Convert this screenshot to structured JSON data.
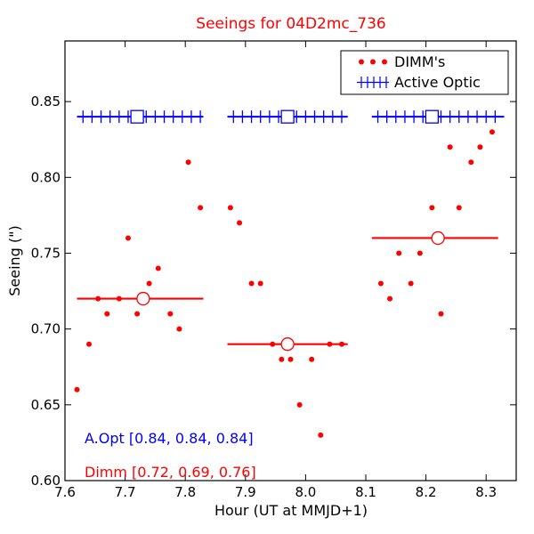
{
  "chart_data": {
    "type": "scatter",
    "title": "Seeings for 04D2mc_736",
    "xlabel": "Hour (UT at MMJD+1)",
    "ylabel": "Seeing (\")",
    "xlim": [
      7.6,
      8.35
    ],
    "ylim": [
      0.6,
      0.89
    ],
    "grid": false,
    "legend_position": "top-right",
    "xticks": [
      "7.6",
      "7.7",
      "7.8",
      "7.9",
      "8.0",
      "8.1",
      "8.2",
      "8.3"
    ],
    "yticks": [
      "0.60",
      "0.65",
      "0.70",
      "0.75",
      "0.80",
      "0.85"
    ],
    "legend": [
      "DIMM's",
      "Active Optic"
    ],
    "annotations": [
      "A.Opt [0.84, 0.84, 0.84]",
      "Dimm [0.72, 0.69, 0.76]"
    ],
    "colors": {
      "dimm": "#ff0000",
      "active_optic": "#0000ff",
      "title": "#ff0000"
    },
    "series": [
      {
        "name": "DIMM's",
        "points": [
          [
            7.62,
            0.66
          ],
          [
            7.64,
            0.69
          ],
          [
            7.655,
            0.72
          ],
          [
            7.67,
            0.71
          ],
          [
            7.69,
            0.72
          ],
          [
            7.705,
            0.76
          ],
          [
            7.72,
            0.71
          ],
          [
            7.74,
            0.73
          ],
          [
            7.755,
            0.74
          ],
          [
            7.775,
            0.71
          ],
          [
            7.79,
            0.7
          ],
          [
            7.805,
            0.81
          ],
          [
            7.825,
            0.78
          ],
          [
            7.875,
            0.78
          ],
          [
            7.89,
            0.77
          ],
          [
            7.91,
            0.73
          ],
          [
            7.925,
            0.73
          ],
          [
            7.945,
            0.69
          ],
          [
            7.96,
            0.68
          ],
          [
            7.975,
            0.68
          ],
          [
            7.99,
            0.65
          ],
          [
            8.01,
            0.68
          ],
          [
            8.025,
            0.63
          ],
          [
            8.04,
            0.69
          ],
          [
            8.06,
            0.69
          ],
          [
            8.125,
            0.73
          ],
          [
            8.14,
            0.72
          ],
          [
            8.155,
            0.75
          ],
          [
            8.175,
            0.73
          ],
          [
            8.19,
            0.75
          ],
          [
            8.21,
            0.78
          ],
          [
            8.225,
            0.71
          ],
          [
            8.24,
            0.82
          ],
          [
            8.255,
            0.78
          ],
          [
            8.275,
            0.81
          ],
          [
            8.29,
            0.82
          ],
          [
            8.31,
            0.83
          ]
        ]
      },
      {
        "name": "Active Optic",
        "segments": [
          {
            "x_start": 7.62,
            "x_end": 7.83,
            "y": 0.84,
            "marker_x": 7.72,
            "ticks": [
              7.63,
              7.645,
              7.66,
              7.675,
              7.69,
              7.705,
              7.735,
              7.75,
              7.765,
              7.78,
              7.795,
              7.81,
              7.825
            ]
          },
          {
            "x_start": 7.87,
            "x_end": 8.07,
            "y": 0.84,
            "marker_x": 7.97,
            "ticks": [
              7.88,
              7.895,
              7.91,
              7.925,
              7.94,
              7.955,
              7.985,
              8.0,
              8.015,
              8.03,
              8.045,
              8.06
            ]
          },
          {
            "x_start": 8.11,
            "x_end": 8.33,
            "y": 0.84,
            "marker_x": 8.21,
            "ticks": [
              8.12,
              8.135,
              8.15,
              8.165,
              8.18,
              8.195,
              8.225,
              8.24,
              8.255,
              8.27,
              8.285,
              8.3,
              8.315
            ]
          }
        ]
      },
      {
        "name": "DIMM median",
        "segments": [
          {
            "x_start": 7.62,
            "x_end": 7.83,
            "y": 0.72,
            "marker_x": 7.73
          },
          {
            "x_start": 7.87,
            "x_end": 8.07,
            "y": 0.69,
            "marker_x": 7.97
          },
          {
            "x_start": 8.11,
            "x_end": 8.32,
            "y": 0.76,
            "marker_x": 8.22
          }
        ]
      }
    ]
  }
}
